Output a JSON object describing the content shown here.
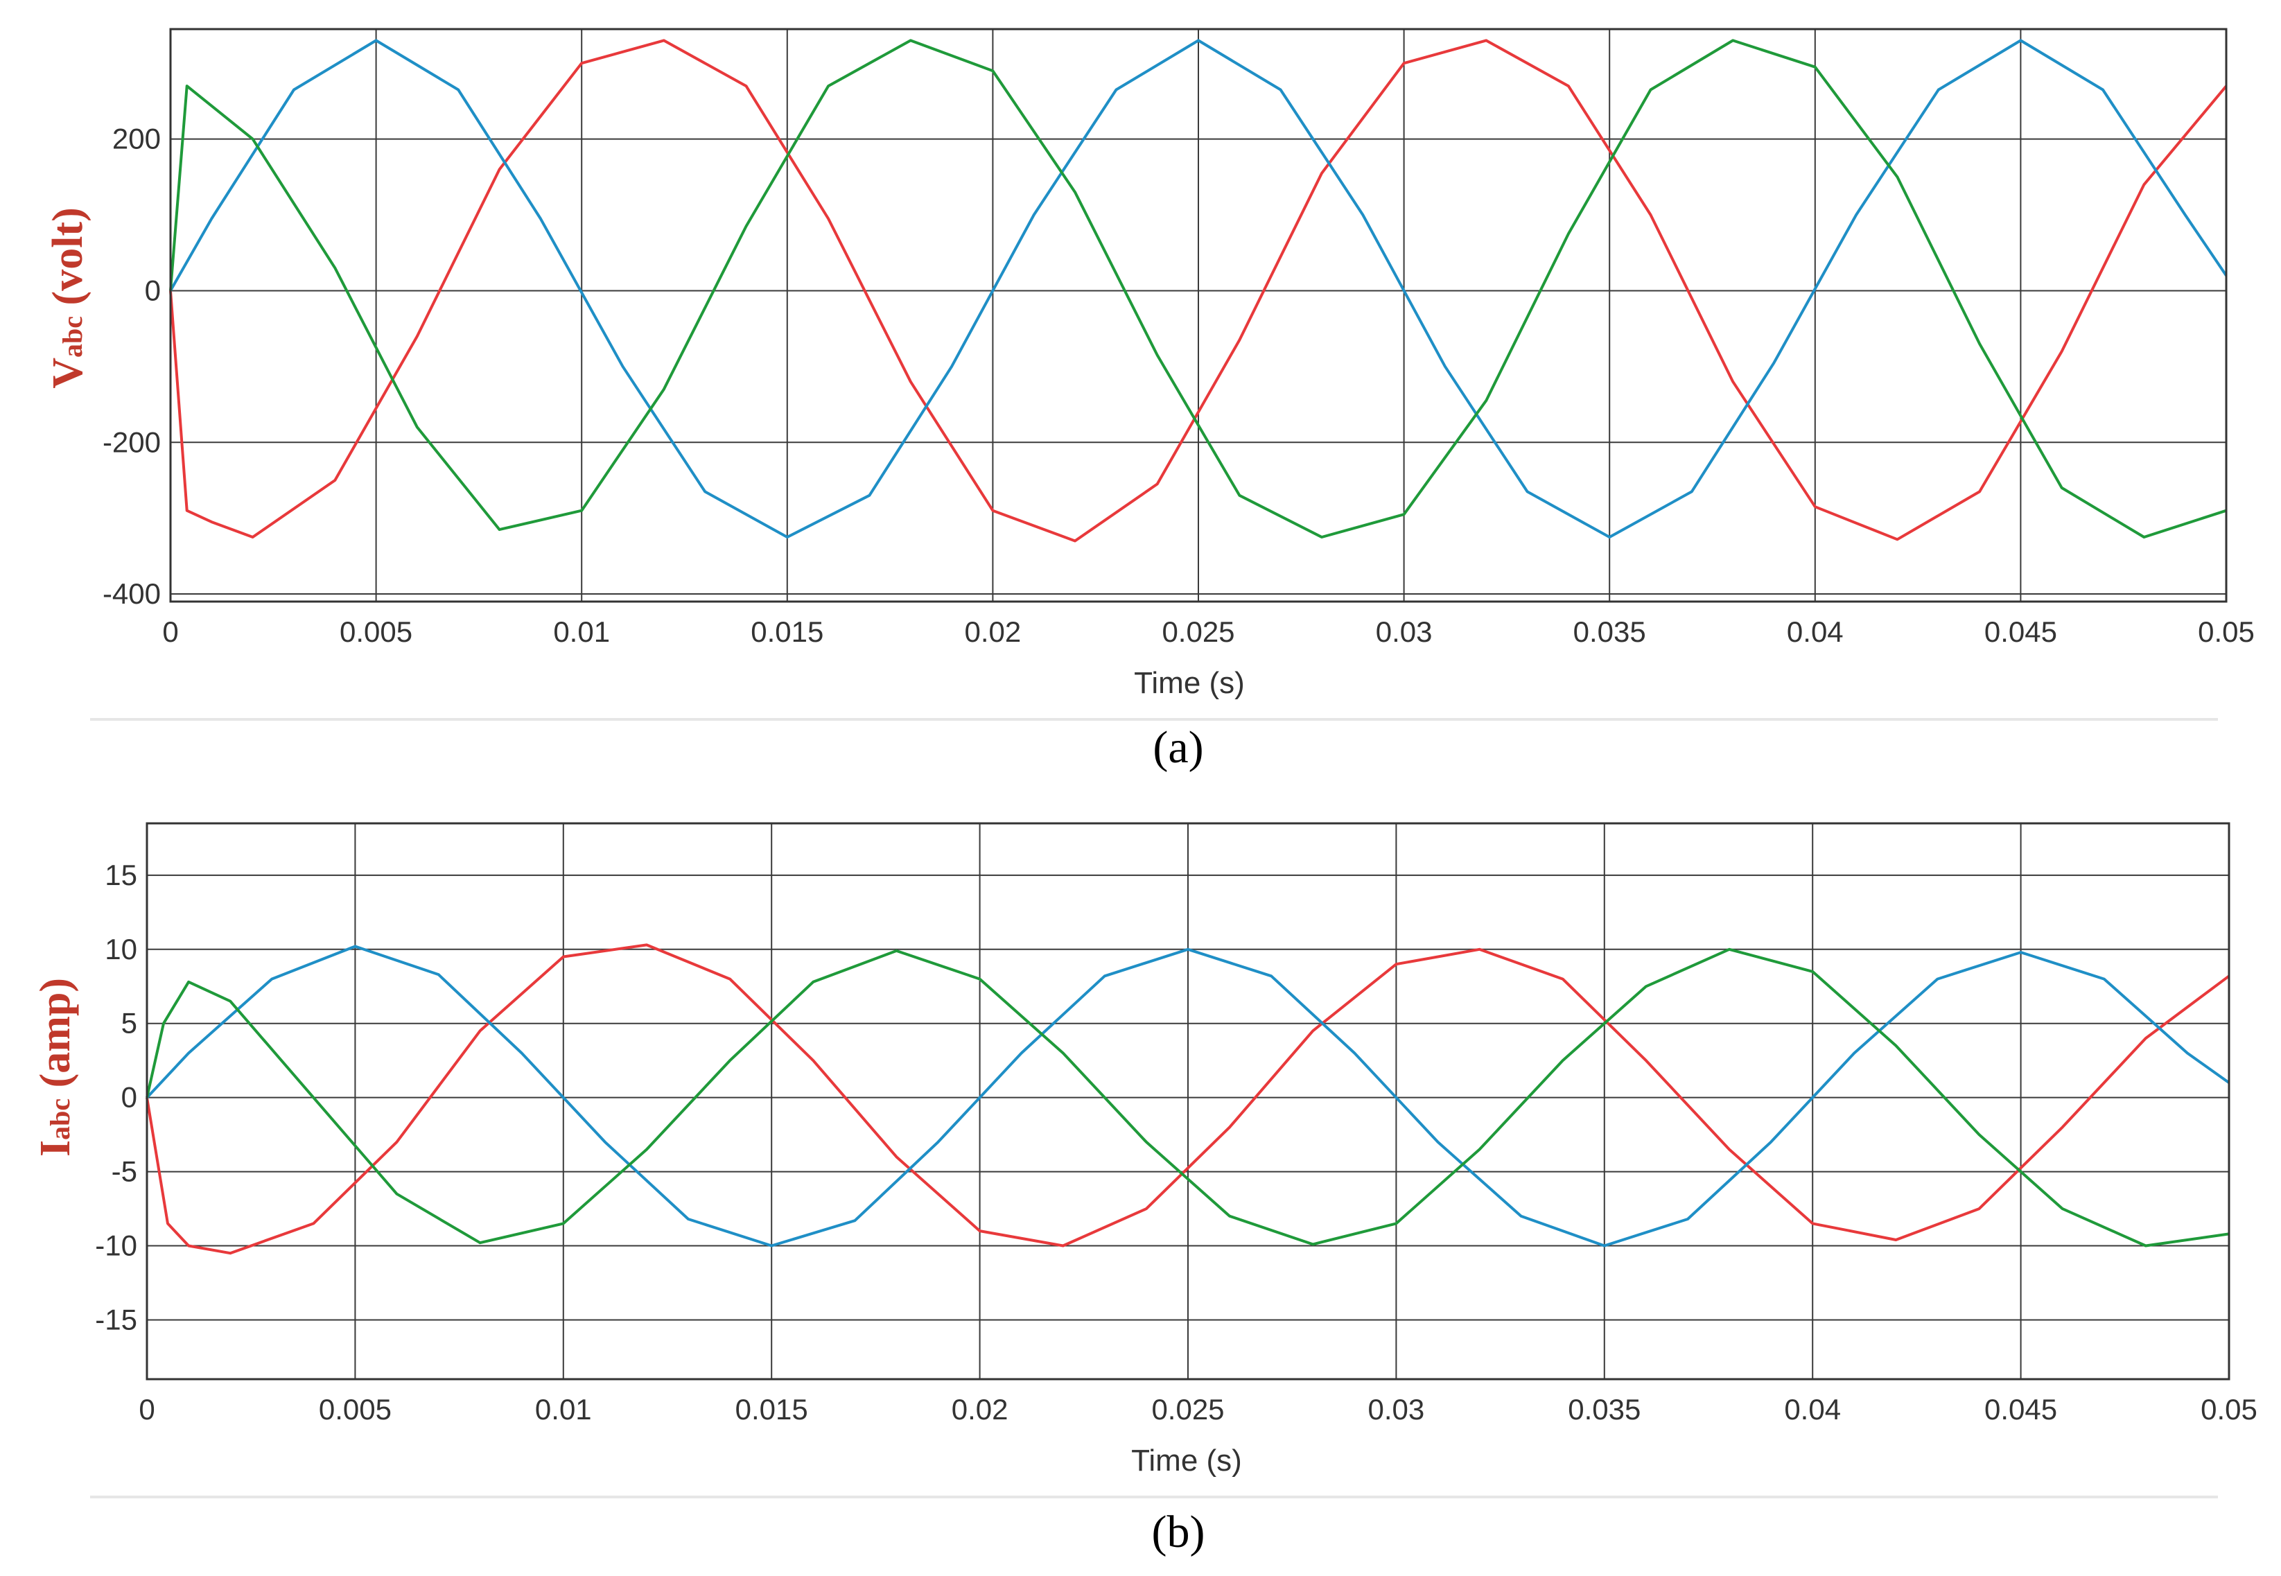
{
  "colors": {
    "phase_a": "#e8393b",
    "phase_b": "#1f8fc6",
    "phase_c": "#1f9a3a",
    "label": "#c0392b"
  },
  "chart_data": [
    {
      "type": "line",
      "caption": "(a)",
      "ylabel": {
        "main": "V",
        "sub": "abc",
        "unit": " (volt)"
      },
      "xlabel": "Time (s)",
      "xlim": [
        0,
        0.05
      ],
      "ylim": [
        -410,
        345
      ],
      "xticks": [
        0,
        0.005,
        0.01,
        0.015,
        0.02,
        0.025,
        0.03,
        0.035,
        0.04,
        0.045,
        0.05
      ],
      "xtick_labels": [
        "0",
        "0.005",
        "0.01",
        "0.015",
        "0.02",
        "0.025",
        "0.03",
        "0.035",
        "0.04",
        "0.045",
        "0.05"
      ],
      "yticks": [
        -400,
        -200,
        0,
        200
      ],
      "ytick_labels": [
        "-400",
        "-200",
        "0",
        "200"
      ],
      "grid": true,
      "series": [
        {
          "color": "#e8393b",
          "x": [
            0,
            0.0004,
            0.001,
            0.002,
            0.004,
            0.006,
            0.008,
            0.01,
            0.012,
            0.014,
            0.016,
            0.018,
            0.02,
            0.022,
            0.024,
            0.026,
            0.028,
            0.03,
            0.032,
            0.034,
            0.036,
            0.038,
            0.04,
            0.042,
            0.044,
            0.046,
            0.048,
            0.05
          ],
          "y": [
            0,
            -290,
            -305,
            -325,
            -250,
            -60,
            160,
            300,
            330,
            270,
            95,
            -120,
            -290,
            -330,
            -255,
            -65,
            155,
            300,
            330,
            270,
            100,
            -120,
            -285,
            -328,
            -265,
            -80,
            140,
            270
          ]
        },
        {
          "color": "#1f8fc6",
          "x": [
            0,
            0.001,
            0.003,
            0.005,
            0.007,
            0.009,
            0.011,
            0.013,
            0.015,
            0.017,
            0.019,
            0.021,
            0.023,
            0.025,
            0.027,
            0.029,
            0.031,
            0.033,
            0.035,
            0.037,
            0.039,
            0.041,
            0.043,
            0.045,
            0.047,
            0.049,
            0.05
          ],
          "y": [
            0,
            95,
            265,
            330,
            265,
            95,
            -100,
            -265,
            -325,
            -270,
            -100,
            100,
            265,
            330,
            265,
            100,
            -100,
            -265,
            -325,
            -265,
            -95,
            100,
            265,
            330,
            265,
            100,
            20
          ]
        },
        {
          "color": "#1f9a3a",
          "x": [
            0,
            0.0004,
            0.002,
            0.004,
            0.006,
            0.008,
            0.01,
            0.012,
            0.014,
            0.016,
            0.018,
            0.02,
            0.022,
            0.024,
            0.026,
            0.028,
            0.03,
            0.032,
            0.034,
            0.036,
            0.038,
            0.04,
            0.042,
            0.044,
            0.046,
            0.048,
            0.05
          ],
          "y": [
            0,
            270,
            200,
            30,
            -180,
            -315,
            -290,
            -130,
            85,
            270,
            330,
            290,
            130,
            -85,
            -270,
            -325,
            -295,
            -145,
            75,
            265,
            330,
            295,
            150,
            -70,
            -260,
            -325,
            -290
          ]
        }
      ]
    },
    {
      "type": "line",
      "caption": "(b)",
      "ylabel": {
        "main": "I",
        "sub": "abc",
        "unit": " (amp)"
      },
      "xlabel": "Time (s)",
      "xlim": [
        0,
        0.05
      ],
      "ylim": [
        -19,
        18.5
      ],
      "xticks": [
        0,
        0.005,
        0.01,
        0.015,
        0.02,
        0.025,
        0.03,
        0.035,
        0.04,
        0.045,
        0.05
      ],
      "xtick_labels": [
        "0",
        "0.005",
        "0.01",
        "0.015",
        "0.02",
        "0.025",
        "0.03",
        "0.035",
        "0.04",
        "0.045",
        "0.05"
      ],
      "yticks": [
        -15,
        -10,
        -5,
        0,
        5,
        10,
        15
      ],
      "ytick_labels": [
        "-15",
        "-10",
        "-5",
        "0",
        "5",
        "10",
        "15"
      ],
      "grid": true,
      "series": [
        {
          "color": "#e8393b",
          "x": [
            0,
            0.0005,
            0.001,
            0.002,
            0.004,
            0.006,
            0.008,
            0.01,
            0.012,
            0.014,
            0.016,
            0.018,
            0.02,
            0.022,
            0.024,
            0.026,
            0.028,
            0.03,
            0.032,
            0.034,
            0.036,
            0.038,
            0.04,
            0.042,
            0.044,
            0.046,
            0.048,
            0.05
          ],
          "y": [
            0,
            -8.5,
            -10,
            -10.5,
            -8.5,
            -3,
            4.5,
            9.5,
            10.3,
            8,
            2.5,
            -4,
            -9,
            -10,
            -7.5,
            -2,
            4.5,
            9,
            10,
            8,
            2.5,
            -3.5,
            -8.5,
            -9.6,
            -7.5,
            -2,
            4,
            8.2
          ]
        },
        {
          "color": "#1f8fc6",
          "x": [
            0,
            0.001,
            0.003,
            0.005,
            0.007,
            0.009,
            0.011,
            0.013,
            0.015,
            0.017,
            0.019,
            0.021,
            0.023,
            0.025,
            0.027,
            0.029,
            0.031,
            0.033,
            0.035,
            0.037,
            0.039,
            0.041,
            0.043,
            0.045,
            0.047,
            0.049,
            0.05
          ],
          "y": [
            0,
            3,
            8,
            10.2,
            8.3,
            3,
            -3,
            -8.2,
            -10,
            -8.3,
            -3,
            3,
            8.2,
            10,
            8.2,
            3,
            -3,
            -8,
            -10,
            -8.2,
            -3,
            3,
            8,
            9.8,
            8,
            3,
            1
          ]
        },
        {
          "color": "#1f9a3a",
          "x": [
            0,
            0.0004,
            0.001,
            0.002,
            0.004,
            0.006,
            0.008,
            0.01,
            0.012,
            0.014,
            0.016,
            0.018,
            0.02,
            0.022,
            0.024,
            0.026,
            0.028,
            0.03,
            0.032,
            0.034,
            0.036,
            0.038,
            0.04,
            0.042,
            0.044,
            0.046,
            0.048,
            0.05
          ],
          "y": [
            0,
            5,
            7.8,
            6.5,
            0,
            -6.5,
            -9.8,
            -8.5,
            -3.5,
            2.5,
            7.8,
            9.9,
            8,
            3,
            -3,
            -8,
            -9.9,
            -8.5,
            -3.5,
            2.5,
            7.5,
            10,
            8.5,
            3.5,
            -2.5,
            -7.5,
            -10,
            -9.2
          ]
        }
      ]
    }
  ]
}
